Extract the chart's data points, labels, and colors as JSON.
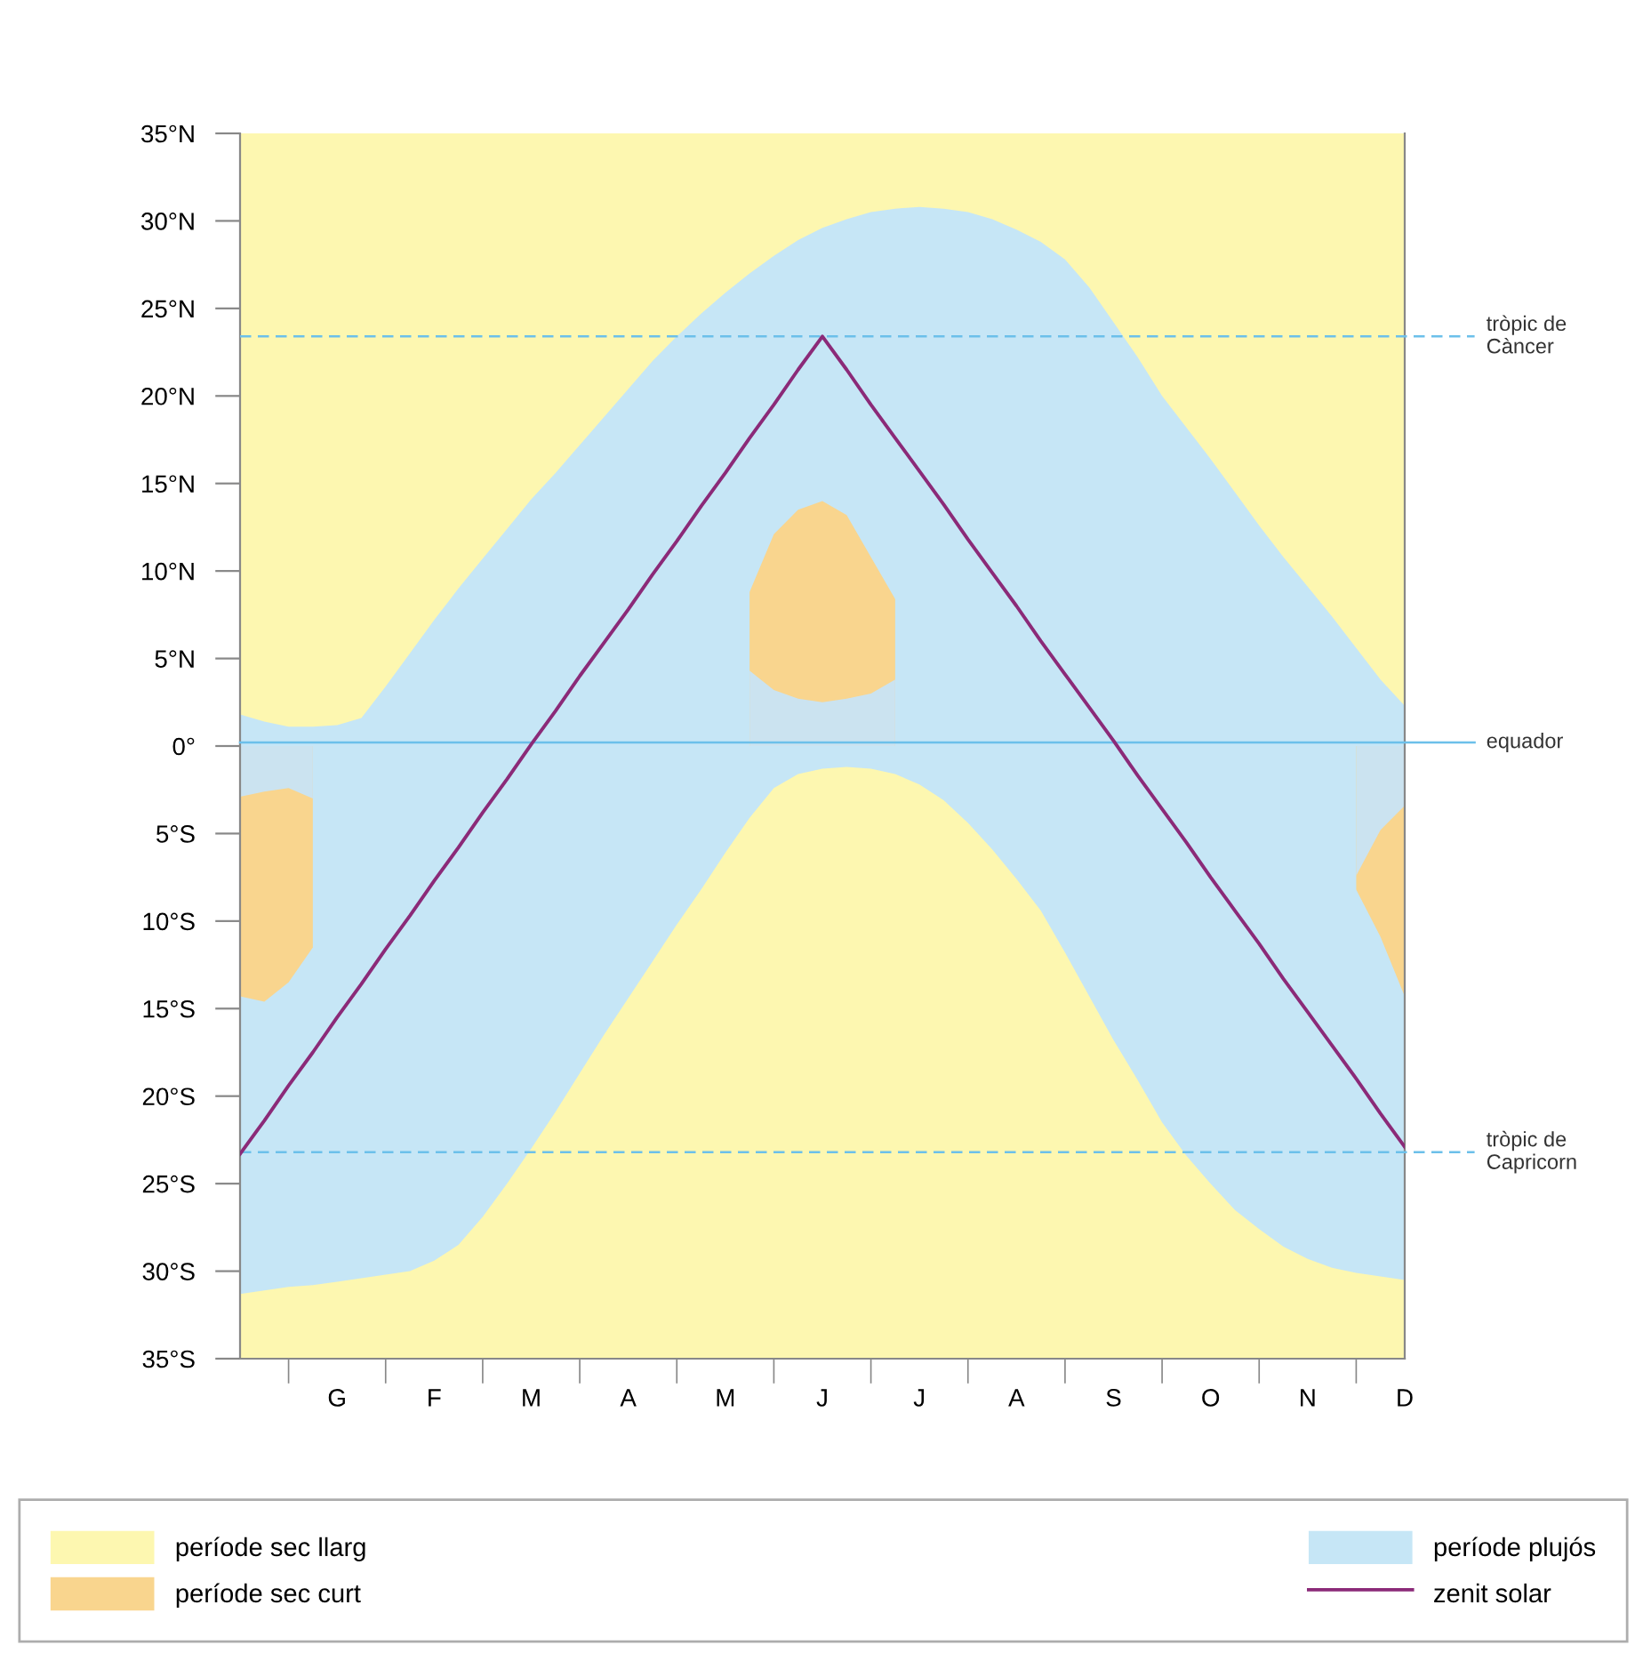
{
  "chart_data": {
    "type": "area",
    "categories": [
      null,
      null,
      null,
      null,
      "G",
      null,
      null,
      null,
      "F",
      null,
      null,
      null,
      "M",
      null,
      null,
      null,
      "A",
      null,
      null,
      null,
      "M",
      null,
      null,
      null,
      "J",
      null,
      null,
      null,
      "J",
      null,
      null,
      null,
      "A",
      null,
      null,
      null,
      "S",
      null,
      null,
      null,
      "O",
      null,
      null,
      null,
      "N",
      null,
      null,
      null,
      "D"
    ],
    "ylim": [
      -35,
      35
    ],
    "yticks": [
      {
        "value": 35,
        "label": "35°N"
      },
      {
        "value": 30,
        "label": "30°N"
      },
      {
        "value": 25,
        "label": "25°N"
      },
      {
        "value": 20,
        "label": "20°N"
      },
      {
        "value": 15,
        "label": "15°N"
      },
      {
        "value": 10,
        "label": "10°N"
      },
      {
        "value": 5,
        "label": "5°N"
      },
      {
        "value": 0,
        "label": "0°"
      },
      {
        "value": -5,
        "label": "5°S"
      },
      {
        "value": -10,
        "label": "10°S"
      },
      {
        "value": -15,
        "label": "15°S"
      },
      {
        "value": -20,
        "label": "20°S"
      },
      {
        "value": -25,
        "label": "25°S"
      },
      {
        "value": -30,
        "label": "30°S"
      },
      {
        "value": -35,
        "label": "35°S"
      }
    ],
    "legend": "bottom",
    "series": [
      {
        "name": "període sec llarg",
        "color": "#fdf7b0",
        "values": [
          35,
          35,
          35,
          35,
          35,
          35,
          35,
          35,
          35,
          35,
          35,
          35,
          35,
          35,
          35,
          35,
          35,
          35,
          35,
          35,
          35,
          35,
          35,
          35,
          35,
          35,
          35,
          35,
          35,
          35,
          35,
          35,
          35,
          35,
          35,
          35,
          35,
          35,
          35,
          35,
          35,
          35,
          35,
          35,
          35,
          35,
          35,
          35,
          35
        ]
      },
      {
        "color": "#fdf7b0",
        "values": [
          -35,
          -35,
          -35,
          -35,
          -35,
          -35,
          -35,
          -35,
          -35,
          -35,
          -35,
          -35,
          -35,
          -35,
          -35,
          -35,
          -35,
          -35,
          -35,
          -35,
          -35,
          -35,
          -35,
          -35,
          -35,
          -35,
          -35,
          -35,
          -35,
          -35,
          -35,
          -35,
          -35,
          -35,
          -35,
          -35,
          -35,
          -35,
          -35,
          -35,
          -35,
          -35,
          -35,
          -35,
          -35,
          -35,
          -35,
          -35,
          -35
        ]
      },
      {
        "name": "període plujós",
        "color": "#c6e6f6",
        "values": [
          1.8,
          1.4,
          1.1,
          1.1,
          1.2,
          1.6,
          3.4,
          5.3,
          7.2,
          9,
          10.7,
          12.4,
          14.1,
          15.6,
          17.2,
          18.8,
          20.4,
          22,
          23.4,
          24.7,
          25.9,
          27,
          28,
          28.9,
          29.6,
          30.1,
          30.5,
          30.7,
          30.8,
          30.7,
          30.5,
          30.1,
          29.5,
          28.8,
          27.8,
          26.2,
          24.2,
          22.2,
          20,
          18.2,
          16.4,
          14.5,
          12.6,
          10.8,
          9.1,
          7.4,
          5.6,
          3.8,
          2.3
        ]
      },
      {
        "color": "#c6e6f6",
        "values": [
          -31.3,
          -31.1,
          -30.9,
          -30.8,
          -30.6,
          -30.4,
          -30.2,
          -30,
          -29.4,
          -28.5,
          -26.9,
          -25,
          -23,
          -20.9,
          -18.7,
          -16.5,
          -14.4,
          -12.3,
          -10.2,
          -8.2,
          -6.1,
          -4.1,
          -2.4,
          -1.6,
          -1.3,
          -1.2,
          -1.3,
          -1.6,
          -2.2,
          -3.1,
          -4.4,
          -5.9,
          -7.6,
          -9.4,
          -11.8,
          -14.3,
          -16.8,
          -19.1,
          -21.5,
          -23.4,
          -25,
          -26.5,
          -27.6,
          -28.6,
          -29.3,
          -29.8,
          -30.1,
          -30.3,
          -30.5
        ]
      },
      {
        "name": "període sec curt",
        "color": "#f9d58e",
        "values": [
          -14.3,
          -14.6,
          -13.5,
          -11.5,
          null,
          null,
          null,
          null,
          null,
          null,
          null,
          null,
          null,
          null,
          null,
          null,
          null,
          null,
          null,
          null,
          null,
          8.8,
          12.1,
          13.5,
          14,
          13.2,
          10.8,
          8.4,
          null,
          null,
          null,
          null,
          null,
          null,
          null,
          null,
          null,
          null,
          null,
          null,
          null,
          null,
          null,
          null,
          null,
          null,
          -8.2,
          -10.9,
          -14.3
        ]
      },
      {
        "color": "#cbe3f0",
        "values": [
          -2.9,
          -2.6,
          -2.4,
          -3,
          null,
          null,
          null,
          null,
          null,
          null,
          null,
          null,
          null,
          null,
          null,
          null,
          null,
          null,
          null,
          null,
          null,
          4.3,
          3.2,
          2.7,
          2.5,
          2.7,
          3,
          3.8,
          null,
          null,
          null,
          null,
          null,
          null,
          null,
          null,
          null,
          null,
          null,
          null,
          null,
          null,
          null,
          null,
          null,
          null,
          -7.4,
          -4.8,
          -3.4
        ]
      },
      {
        "type": "line",
        "name": "zenit solar",
        "color": "#8b2a78",
        "line_style": "solid",
        "values": [
          -23.3,
          -21.4,
          -19.4,
          -17.5,
          -15.5,
          -13.6,
          -11.6,
          -9.7,
          -7.7,
          -5.8,
          -3.8,
          -1.9,
          0.1,
          2,
          4,
          5.9,
          7.8,
          9.8,
          11.7,
          13.7,
          15.6,
          17.6,
          19.5,
          21.5,
          23.4,
          21.5,
          19.5,
          17.6,
          15.7,
          13.8,
          11.8,
          9.9,
          8,
          6,
          4.1,
          2.2,
          0.3,
          -1.7,
          -3.6,
          -5.5,
          -7.5,
          -9.4,
          -11.3,
          -13.3,
          -15.2,
          -17.1,
          -19,
          -21,
          -22.9
        ]
      }
    ],
    "ref_lines": [
      {
        "axis": "y",
        "value": 23.4,
        "label": "tròpic de\nCàncer",
        "color": "#6cc0ea",
        "line_style": "dashed"
      },
      {
        "axis": "y",
        "value": 0.2,
        "label": "equador",
        "color": "#6cc0ea",
        "line_style": "solid"
      },
      {
        "axis": "y",
        "value": -23.2,
        "label": "tròpic de\nCapricorn",
        "color": "#6cc0ea",
        "line_style": "dashed"
      }
    ]
  }
}
